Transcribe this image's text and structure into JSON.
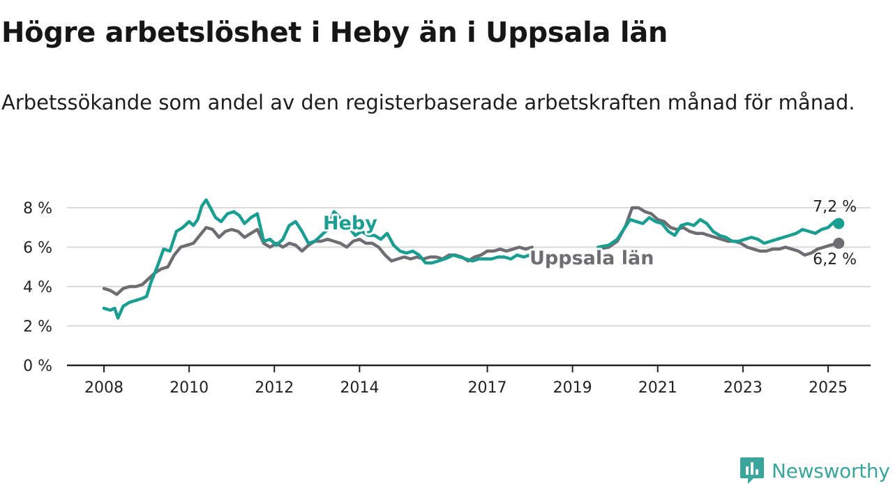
{
  "title": "Högre arbetslöshet i Heby än i Uppsala län",
  "subtitle": "Arbetssökande som andel av den registerbaserade arbetskraften månad för månad.",
  "brand": {
    "name": "Newsworthy",
    "icon": "newsworthy-logo-icon",
    "color": "#3aa59b"
  },
  "chart_data": {
    "type": "line",
    "title": "",
    "xlabel": "",
    "ylabel": "",
    "ylim": [
      0,
      9
    ],
    "xlim": [
      2007.2,
      2026
    ],
    "grid": true,
    "y_ticks": [
      {
        "value": 0,
        "label": "0 %"
      },
      {
        "value": 2,
        "label": "2 %"
      },
      {
        "value": 4,
        "label": "4 %"
      },
      {
        "value": 6,
        "label": "6 %"
      },
      {
        "value": 8,
        "label": "8 %"
      }
    ],
    "x_ticks": [
      {
        "value": 2008,
        "label": "2008"
      },
      {
        "value": 2010,
        "label": "2010"
      },
      {
        "value": 2012,
        "label": "2012"
      },
      {
        "value": 2014,
        "label": "2014"
      },
      {
        "value": 2017,
        "label": "2017"
      },
      {
        "value": 2019,
        "label": "2019"
      },
      {
        "value": 2021,
        "label": "2021"
      },
      {
        "value": 2023,
        "label": "2023"
      },
      {
        "value": 2025,
        "label": "2025"
      }
    ],
    "series": [
      {
        "name": "Heby",
        "color": "#1a9e91",
        "end_label": "7,2 %",
        "segments": [
          [
            [
              2008.0,
              2.9
            ],
            [
              2008.15,
              2.8
            ],
            [
              2008.25,
              2.9
            ],
            [
              2008.33,
              2.4
            ],
            [
              2008.45,
              3.0
            ],
            [
              2008.6,
              3.2
            ],
            [
              2008.75,
              3.3
            ],
            [
              2008.9,
              3.4
            ],
            [
              2009.0,
              3.5
            ],
            [
              2009.1,
              4.2
            ],
            [
              2009.25,
              5.0
            ],
            [
              2009.4,
              5.9
            ],
            [
              2009.55,
              5.8
            ],
            [
              2009.7,
              6.8
            ],
            [
              2009.85,
              7.0
            ],
            [
              2010.0,
              7.3
            ],
            [
              2010.1,
              7.1
            ],
            [
              2010.2,
              7.4
            ],
            [
              2010.3,
              8.1
            ],
            [
              2010.4,
              8.4
            ],
            [
              2010.5,
              8.0
            ],
            [
              2010.62,
              7.5
            ],
            [
              2010.75,
              7.3
            ],
            [
              2010.9,
              7.7
            ],
            [
              2011.05,
              7.8
            ],
            [
              2011.18,
              7.6
            ],
            [
              2011.3,
              7.2
            ],
            [
              2011.45,
              7.5
            ],
            [
              2011.6,
              7.7
            ],
            [
              2011.75,
              6.3
            ],
            [
              2011.9,
              6.4
            ],
            [
              2012.05,
              6.1
            ],
            [
              2012.2,
              6.4
            ],
            [
              2012.35,
              7.1
            ],
            [
              2012.5,
              7.3
            ],
            [
              2012.65,
              6.8
            ],
            [
              2012.8,
              6.2
            ],
            [
              2012.95,
              6.3
            ],
            [
              2013.1,
              6.6
            ],
            [
              2013.25,
              6.9
            ],
            [
              2013.4,
              7.8
            ],
            [
              2013.5,
              7.6
            ],
            [
              2013.6,
              7.3
            ],
            [
              2013.75,
              7.0
            ],
            [
              2013.9,
              6.6
            ],
            [
              2014.05,
              6.8
            ],
            [
              2014.2,
              6.6
            ],
            [
              2014.35,
              6.6
            ],
            [
              2014.5,
              6.4
            ],
            [
              2014.65,
              6.7
            ],
            [
              2014.8,
              6.1
            ],
            [
              2014.95,
              5.8
            ],
            [
              2015.1,
              5.7
            ],
            [
              2015.25,
              5.8
            ],
            [
              2015.4,
              5.6
            ],
            [
              2015.55,
              5.2
            ],
            [
              2015.7,
              5.2
            ],
            [
              2015.85,
              5.3
            ],
            [
              2016.0,
              5.4
            ],
            [
              2016.2,
              5.6
            ],
            [
              2016.35,
              5.5
            ],
            [
              2016.5,
              5.4
            ],
            [
              2016.65,
              5.3
            ],
            [
              2016.8,
              5.4
            ],
            [
              2016.95,
              5.4
            ],
            [
              2017.1,
              5.4
            ],
            [
              2017.25,
              5.5
            ],
            [
              2017.4,
              5.5
            ],
            [
              2017.55,
              5.4
            ],
            [
              2017.7,
              5.6
            ],
            [
              2017.85,
              5.5
            ],
            [
              2018.0,
              5.6
            ]
          ],
          [
            [
              2019.6,
              6.0
            ],
            [
              2019.85,
              6.1
            ],
            [
              2020.05,
              6.4
            ],
            [
              2020.2,
              6.9
            ],
            [
              2020.35,
              7.4
            ],
            [
              2020.5,
              7.3
            ],
            [
              2020.65,
              7.2
            ],
            [
              2020.8,
              7.5
            ],
            [
              2020.95,
              7.3
            ],
            [
              2021.1,
              7.2
            ],
            [
              2021.25,
              6.8
            ],
            [
              2021.4,
              6.6
            ],
            [
              2021.55,
              7.1
            ],
            [
              2021.7,
              7.2
            ],
            [
              2021.85,
              7.1
            ],
            [
              2022.0,
              7.4
            ],
            [
              2022.15,
              7.2
            ],
            [
              2022.3,
              6.8
            ],
            [
              2022.45,
              6.6
            ],
            [
              2022.6,
              6.5
            ],
            [
              2022.75,
              6.3
            ],
            [
              2022.9,
              6.3
            ],
            [
              2023.05,
              6.4
            ],
            [
              2023.2,
              6.5
            ],
            [
              2023.35,
              6.4
            ],
            [
              2023.5,
              6.2
            ],
            [
              2023.65,
              6.3
            ],
            [
              2023.8,
              6.4
            ],
            [
              2023.95,
              6.5
            ],
            [
              2024.1,
              6.6
            ],
            [
              2024.25,
              6.7
            ],
            [
              2024.4,
              6.9
            ],
            [
              2024.55,
              6.8
            ],
            [
              2024.7,
              6.7
            ],
            [
              2024.85,
              6.9
            ],
            [
              2025.0,
              7.0
            ],
            [
              2025.15,
              7.3
            ],
            [
              2025.25,
              7.2
            ]
          ]
        ]
      },
      {
        "name": "Uppsala län",
        "color": "#6e6e72",
        "end_label": "6,2 %",
        "segments": [
          [
            [
              2008.0,
              3.9
            ],
            [
              2008.15,
              3.8
            ],
            [
              2008.3,
              3.6
            ],
            [
              2008.45,
              3.9
            ],
            [
              2008.6,
              4.0
            ],
            [
              2008.75,
              4.0
            ],
            [
              2008.9,
              4.1
            ],
            [
              2009.05,
              4.4
            ],
            [
              2009.2,
              4.7
            ],
            [
              2009.35,
              4.9
            ],
            [
              2009.5,
              5.0
            ],
            [
              2009.65,
              5.6
            ],
            [
              2009.8,
              6.0
            ],
            [
              2009.95,
              6.1
            ],
            [
              2010.1,
              6.2
            ],
            [
              2010.25,
              6.6
            ],
            [
              2010.4,
              7.0
            ],
            [
              2010.55,
              6.9
            ],
            [
              2010.7,
              6.5
            ],
            [
              2010.85,
              6.8
            ],
            [
              2011.0,
              6.9
            ],
            [
              2011.15,
              6.8
            ],
            [
              2011.3,
              6.5
            ],
            [
              2011.45,
              6.7
            ],
            [
              2011.6,
              6.9
            ],
            [
              2011.75,
              6.2
            ],
            [
              2011.9,
              6.0
            ],
            [
              2012.05,
              6.2
            ],
            [
              2012.2,
              6.0
            ],
            [
              2012.35,
              6.2
            ],
            [
              2012.5,
              6.1
            ],
            [
              2012.65,
              5.8
            ],
            [
              2012.8,
              6.1
            ],
            [
              2012.95,
              6.3
            ],
            [
              2013.1,
              6.3
            ],
            [
              2013.25,
              6.4
            ],
            [
              2013.4,
              6.3
            ],
            [
              2013.55,
              6.2
            ],
            [
              2013.7,
              6.0
            ],
            [
              2013.85,
              6.3
            ],
            [
              2014.0,
              6.4
            ],
            [
              2014.15,
              6.2
            ],
            [
              2014.3,
              6.2
            ],
            [
              2014.45,
              6.0
            ],
            [
              2014.6,
              5.6
            ],
            [
              2014.75,
              5.3
            ],
            [
              2014.9,
              5.4
            ],
            [
              2015.05,
              5.5
            ],
            [
              2015.2,
              5.4
            ],
            [
              2015.35,
              5.5
            ],
            [
              2015.5,
              5.4
            ],
            [
              2015.65,
              5.5
            ],
            [
              2015.8,
              5.5
            ],
            [
              2015.95,
              5.4
            ],
            [
              2016.1,
              5.6
            ],
            [
              2016.25,
              5.6
            ],
            [
              2016.4,
              5.5
            ],
            [
              2016.55,
              5.3
            ],
            [
              2016.7,
              5.5
            ],
            [
              2016.85,
              5.6
            ],
            [
              2017.0,
              5.8
            ],
            [
              2017.15,
              5.8
            ],
            [
              2017.3,
              5.9
            ],
            [
              2017.45,
              5.8
            ],
            [
              2017.6,
              5.9
            ],
            [
              2017.75,
              6.0
            ],
            [
              2017.9,
              5.9
            ],
            [
              2018.05,
              6.0
            ]
          ],
          [
            [
              2019.6,
              5.9
            ],
            [
              2019.85,
              6.0
            ],
            [
              2020.05,
              6.3
            ],
            [
              2020.25,
              7.1
            ],
            [
              2020.4,
              8.0
            ],
            [
              2020.55,
              8.0
            ],
            [
              2020.7,
              7.8
            ],
            [
              2020.85,
              7.7
            ],
            [
              2021.0,
              7.4
            ],
            [
              2021.15,
              7.3
            ],
            [
              2021.3,
              7.0
            ],
            [
              2021.45,
              6.9
            ],
            [
              2021.6,
              7.0
            ],
            [
              2021.75,
              6.8
            ],
            [
              2021.9,
              6.7
            ],
            [
              2022.05,
              6.7
            ],
            [
              2022.2,
              6.6
            ],
            [
              2022.35,
              6.5
            ],
            [
              2022.5,
              6.4
            ],
            [
              2022.65,
              6.3
            ],
            [
              2022.8,
              6.3
            ],
            [
              2022.95,
              6.2
            ],
            [
              2023.1,
              6.0
            ],
            [
              2023.25,
              5.9
            ],
            [
              2023.4,
              5.8
            ],
            [
              2023.55,
              5.8
            ],
            [
              2023.7,
              5.9
            ],
            [
              2023.85,
              5.9
            ],
            [
              2024.0,
              6.0
            ],
            [
              2024.15,
              5.9
            ],
            [
              2024.3,
              5.8
            ],
            [
              2024.45,
              5.6
            ],
            [
              2024.6,
              5.7
            ],
            [
              2024.75,
              5.9
            ],
            [
              2024.9,
              6.0
            ],
            [
              2025.05,
              6.1
            ],
            [
              2025.25,
              6.2
            ]
          ]
        ]
      }
    ]
  }
}
